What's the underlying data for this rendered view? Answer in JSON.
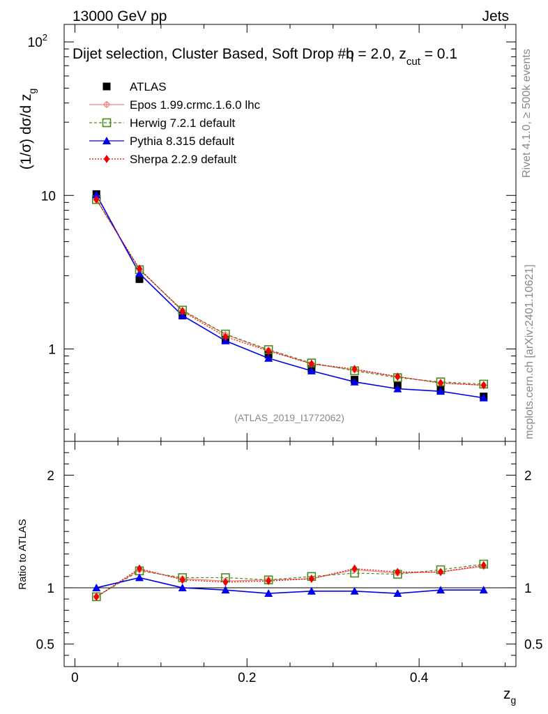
{
  "header": {
    "left": "13000 GeV pp",
    "right": "Jets",
    "selection_main": "Dijet selection, Cluster Based, Soft Drop #b",
    "selection_eta": "η = 2.0, z",
    "selection_sub": "cut",
    "selection_val": " = 0.1"
  },
  "side": {
    "rivet": "Rivet 4.1.0, ≥ 500k events",
    "mcplots": "mcplots.cern.ch [arXiv:2401.10621]"
  },
  "watermark": "(ATLAS_2019_I1772062)",
  "chart_data": {
    "type": "line",
    "title": "Dijet selection, Cluster Based, Soft Drop #b η = 2.0, z_cut = 0.1",
    "xlabel": "z_g",
    "ylabel": "(1/σ) dσ/d z_g",
    "ratio_ylabel": "Ratio to ATLAS",
    "xlim": [
      -0.0125,
      0.5125
    ],
    "ylim": [
      0.25,
      130
    ],
    "yscale": "log",
    "ratio_ylim": [
      0.3,
      2.3
    ],
    "x_ticks": [
      {
        "v": 0,
        "label": "0"
      },
      {
        "v": 0.2,
        "label": "0.2"
      },
      {
        "v": 0.4,
        "label": "0.4"
      }
    ],
    "y_ticks": [
      {
        "v": 1,
        "label": "1"
      },
      {
        "v": 10,
        "label": "10"
      },
      {
        "v": 100,
        "label": "10",
        "sup": "2"
      }
    ],
    "ratio_ticks": [
      {
        "v": 0.5,
        "label": "0.5"
      },
      {
        "v": 1,
        "label": "1"
      },
      {
        "v": 2,
        "label": "2"
      }
    ],
    "x": [
      0.025,
      0.075,
      0.125,
      0.175,
      0.225,
      0.275,
      0.325,
      0.375,
      0.425,
      0.475
    ],
    "data": {
      "name": "ATLAS",
      "values": [
        10.2,
        2.85,
        1.65,
        1.15,
        0.92,
        0.74,
        0.63,
        0.58,
        0.54,
        0.49
      ]
    },
    "series": [
      {
        "name": "Epos 1.99.crmc.1.6.0 lhc",
        "color": "#f08080",
        "dash": "",
        "marker": "cross",
        "values": [
          9.4,
          3.3,
          1.78,
          1.24,
          0.98,
          0.8,
          0.73,
          0.66,
          0.6,
          0.58
        ],
        "ratio": [
          0.92,
          1.16,
          1.08,
          1.06,
          1.07,
          1.08,
          1.16,
          1.13,
          1.14,
          1.19
        ]
      },
      {
        "name": "Herwig 7.2.1 default",
        "color": "#4a8a1a",
        "dash": "4,3",
        "marker": "opensquare",
        "values": [
          9.4,
          3.28,
          1.79,
          1.25,
          0.99,
          0.81,
          0.72,
          0.65,
          0.61,
          0.59
        ],
        "ratio": [
          0.92,
          1.15,
          1.09,
          1.09,
          1.07,
          1.1,
          1.13,
          1.12,
          1.16,
          1.21
        ]
      },
      {
        "name": "Pythia 8.315 default",
        "color": "#0000ee",
        "dash": "",
        "marker": "triangle",
        "values": [
          10.1,
          3.1,
          1.65,
          1.13,
          0.87,
          0.72,
          0.61,
          0.55,
          0.53,
          0.48
        ],
        "ratio": [
          1.0,
          1.09,
          1.0,
          0.98,
          0.95,
          0.97,
          0.97,
          0.95,
          0.98,
          0.98
        ]
      },
      {
        "name": "Sherpa 2.2.9 default",
        "color": "#ee0000",
        "dash": "2,2",
        "marker": "diamond",
        "values": [
          9.4,
          3.33,
          1.76,
          1.2,
          0.97,
          0.8,
          0.74,
          0.66,
          0.6,
          0.58
        ],
        "ratio": [
          0.92,
          1.17,
          1.07,
          1.05,
          1.06,
          1.08,
          1.17,
          1.14,
          1.14,
          1.2
        ]
      }
    ],
    "legend_placement": "top-left"
  }
}
